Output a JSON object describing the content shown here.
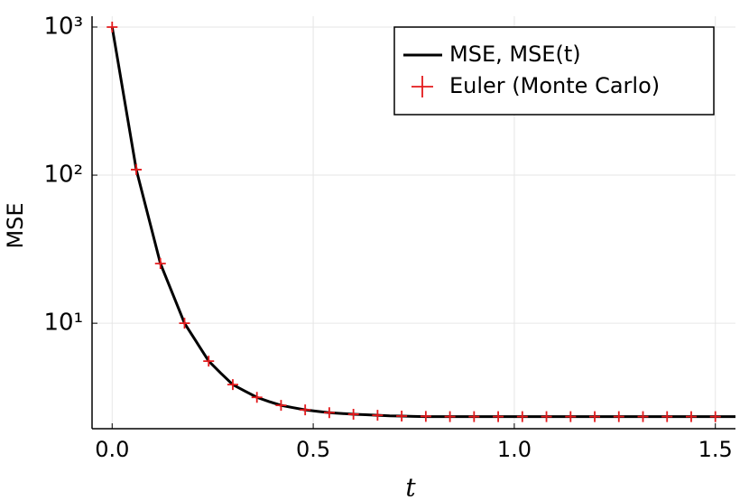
{
  "chart_data": {
    "type": "line",
    "ylabel": "MSE",
    "xlabel": "t",
    "log_y": true,
    "grid": true,
    "legend": "top-right",
    "xlim": [
      -0.05,
      1.55
    ],
    "ylim": [
      1.94,
      1183
    ],
    "xticks": [
      {
        "value": 0,
        "label": "0.0"
      },
      0.5,
      {
        "value": 1,
        "label": "1.0"
      },
      1.5
    ],
    "yticks": [
      {
        "value": 10,
        "label": "10¹"
      },
      {
        "value": 100,
        "label": "10²"
      },
      {
        "value": 1000,
        "label": "10³"
      }
    ],
    "series": [
      {
        "name": "MSE, MSE(t)",
        "color": "#000000",
        "style": "line",
        "x": [
          0,
          0.03,
          0.06,
          0.09,
          0.12,
          0.15,
          0.18,
          0.21,
          0.24,
          0.27,
          0.3,
          0.33,
          0.36,
          0.39,
          0.42,
          0.45,
          0.48,
          0.51,
          0.54,
          0.57,
          0.6,
          0.63,
          0.66,
          0.69,
          0.72,
          0.75,
          0.78,
          0.81,
          0.84,
          0.87,
          0.9,
          0.93,
          0.96,
          0.99,
          1.02,
          1.05,
          1.08,
          1.11,
          1.14,
          1.17,
          1.2,
          1.23,
          1.26,
          1.29,
          1.32,
          1.35,
          1.38,
          1.41,
          1.44,
          1.47,
          1.5,
          1.53,
          1.55
        ],
        "values": [
          1000,
          330,
          109,
          52.5,
          25.3,
          15.9,
          10,
          7.45,
          5.55,
          4.6,
          3.85,
          3.48,
          3.16,
          2.96,
          2.79,
          2.69,
          2.6,
          2.54,
          2.49,
          2.46,
          2.43,
          2.41,
          2.39,
          2.37,
          2.36,
          2.35,
          2.34,
          2.34,
          2.34,
          2.34,
          2.34,
          2.34,
          2.34,
          2.34,
          2.34,
          2.34,
          2.34,
          2.34,
          2.34,
          2.34,
          2.34,
          2.34,
          2.34,
          2.34,
          2.34,
          2.34,
          2.34,
          2.34,
          2.34,
          2.34,
          2.34,
          2.34,
          2.34
        ]
      },
      {
        "name": "Euler (Monte Carlo)",
        "color": "#e41a1c",
        "style": "marker",
        "x": [
          0,
          0.06,
          0.12,
          0.18,
          0.24,
          0.3,
          0.36,
          0.42,
          0.48,
          0.54,
          0.6,
          0.66,
          0.72,
          0.78,
          0.84,
          0.9,
          0.96,
          1.02,
          1.08,
          1.14,
          1.2,
          1.26,
          1.32,
          1.38,
          1.44,
          1.5
        ],
        "values": [
          1000,
          109,
          25.3,
          10,
          5.55,
          3.85,
          3.16,
          2.79,
          2.6,
          2.49,
          2.43,
          2.39,
          2.36,
          2.35,
          2.34,
          2.34,
          2.34,
          2.34,
          2.34,
          2.34,
          2.34,
          2.34,
          2.34,
          2.34,
          2.34,
          2.34
        ]
      }
    ]
  }
}
